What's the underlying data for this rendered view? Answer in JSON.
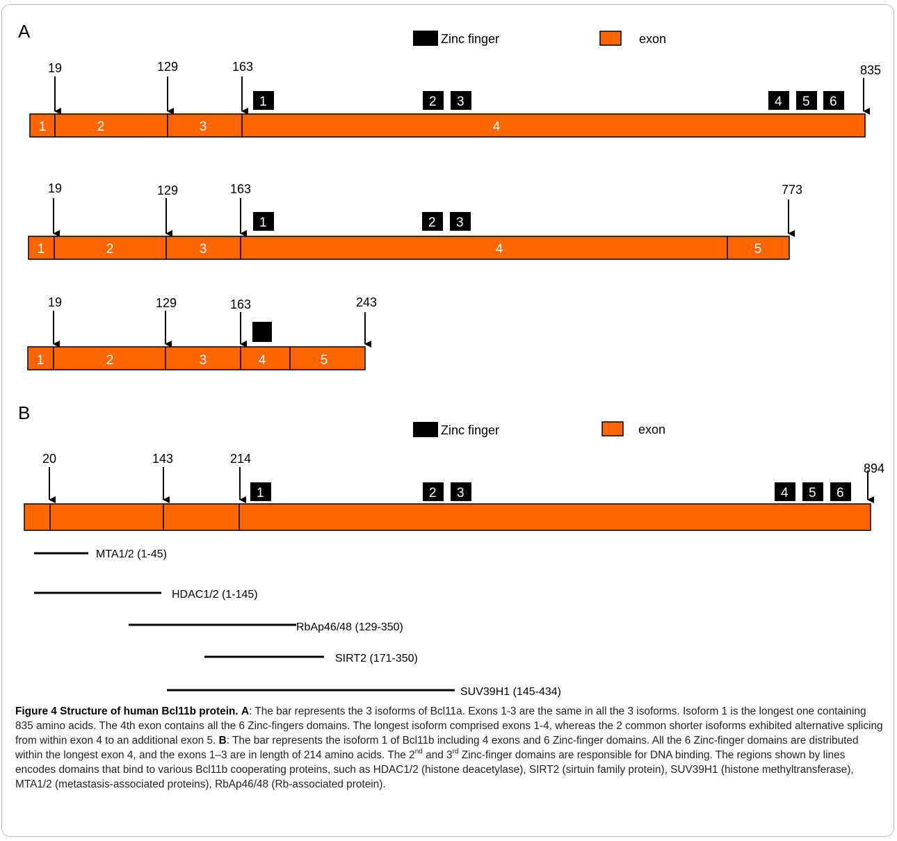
{
  "panel_a": {
    "label": "A",
    "legend": {
      "zinc_finger": "Zinc finger",
      "exon": "exon"
    },
    "isoforms": [
      {
        "positions": [
          "19",
          "129",
          "163",
          "835"
        ],
        "exons": [
          "1",
          "2",
          "3",
          "4"
        ],
        "zinc_fingers": [
          "1",
          "2",
          "3",
          "4",
          "5",
          "6"
        ]
      },
      {
        "positions": [
          "19",
          "129",
          "163",
          "773"
        ],
        "exons": [
          "1",
          "2",
          "3",
          "4",
          "5"
        ],
        "zinc_fingers": [
          "1",
          "2",
          "3"
        ]
      },
      {
        "positions": [
          "19",
          "129",
          "163",
          "243"
        ],
        "exons": [
          "1",
          "2",
          "3",
          "4",
          "5"
        ],
        "zinc_fingers": [
          ""
        ]
      }
    ]
  },
  "panel_b": {
    "label": "B",
    "legend": {
      "zinc_finger": "Zinc finger",
      "exon": "exon"
    },
    "positions": [
      "20",
      "143",
      "214",
      "894"
    ],
    "zinc_fingers": [
      "1",
      "2",
      "3",
      "4",
      "5",
      "6"
    ],
    "binding_regions": [
      "MTA1/2 (1-45)",
      "HDAC1/2 (1-145)",
      "RbAp46/48 (129-350)",
      "SIRT2 (171-350)",
      "SUV39H1 (145-434)"
    ]
  },
  "caption": {
    "figure_label": "Figure 4 Structure of human Bcl11b protein.",
    "a_label": "A",
    "a_text": ": The bar represents the 3 isoforms of Bcl11a. Exons 1-3 are the same in all the 3 isoforms. Isoform 1 is the longest one containing 835 amino acids. The 4th exon contains all the 6 Zinc-fingers domains. The longest isoform comprised exons 1-4, whereas the 2 common shorter isoforms exhibited alternative splicing from within exon 4 to an additional exon 5.",
    "b_label": "B",
    "b_text_1": ": The bar represents the isoform 1 of Bcl11b including 4 exons and 6 Zinc-finger domains. All the 6 Zinc-finger domains are distributed within the longest exon 4, and the exons 1–3 are in length of 214 amino acids. The 2",
    "sup_nd": "nd",
    "b_text_2": " and 3",
    "sup_rd": "rd",
    "b_text_3": " Zinc-finger domains are responsible for DNA binding. The regions shown by lines encodes domains that bind to various Bcl11b cooperating proteins, such as HDAC1/2 (histone deacetylase), SIRT2 (sirtuin family protein), SUV39H1 (histone methyltransferase), MTA1/2 (metastasis-associated proteins), RbAp46/48 (Rb-associated protein)."
  },
  "colors": {
    "exon_fill": "#ff6600",
    "exon_stroke": "#000000",
    "zinc_finger": "#000000"
  }
}
